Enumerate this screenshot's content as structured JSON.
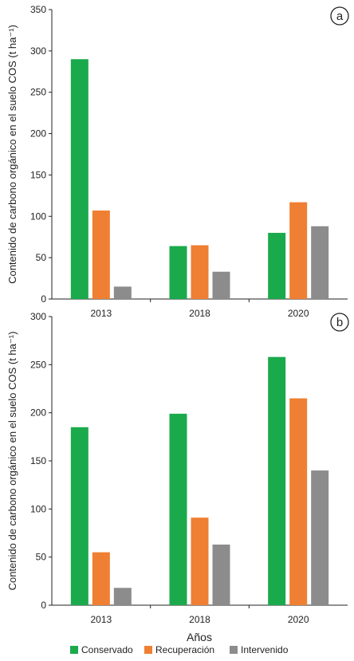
{
  "chart_data": [
    {
      "type": "bar",
      "panel_label": "a",
      "categories": [
        "2013",
        "2018",
        "2020"
      ],
      "series": [
        {
          "name": "Conservado",
          "values": [
            290,
            64,
            80
          ]
        },
        {
          "name": "Recuperación",
          "values": [
            107,
            65,
            117
          ]
        },
        {
          "name": "Intervenido",
          "values": [
            15,
            33,
            88
          ]
        }
      ],
      "ylabel": "Contenido de carbono orgánico en el suelo COS (t ha⁻¹)",
      "ylim": [
        0,
        350
      ],
      "yticks": [
        "0",
        "50",
        "100",
        "150",
        "200",
        "250",
        "300",
        "350"
      ],
      "grid": false
    },
    {
      "type": "bar",
      "panel_label": "b",
      "categories": [
        "2013",
        "2018",
        "2020"
      ],
      "series": [
        {
          "name": "Conservado",
          "values": [
            185,
            199,
            258
          ]
        },
        {
          "name": "Recuperación",
          "values": [
            55,
            91,
            215
          ]
        },
        {
          "name": "Intervenido",
          "values": [
            18,
            63,
            140
          ]
        }
      ],
      "ylabel": "Contenido de carbono orgánico en el suelo COS (t ha⁻¹)",
      "ylim": [
        0,
        300
      ],
      "yticks": [
        "0",
        "50",
        "100",
        "150",
        "200",
        "250",
        "300"
      ],
      "grid": false
    }
  ],
  "xlabel": "Años",
  "legend": {
    "placement": "bottom",
    "items": [
      {
        "name": "Conservado",
        "color": "#1aaa4b"
      },
      {
        "name": "Recuperación",
        "color": "#ef7f32"
      },
      {
        "name": "Intervenido",
        "color": "#8c8c8c"
      }
    ]
  },
  "colors": {
    "Conservado": "#1aaa4b",
    "Recuperación": "#ef7f32",
    "Intervenido": "#8c8c8c",
    "axis": "#222222"
  }
}
